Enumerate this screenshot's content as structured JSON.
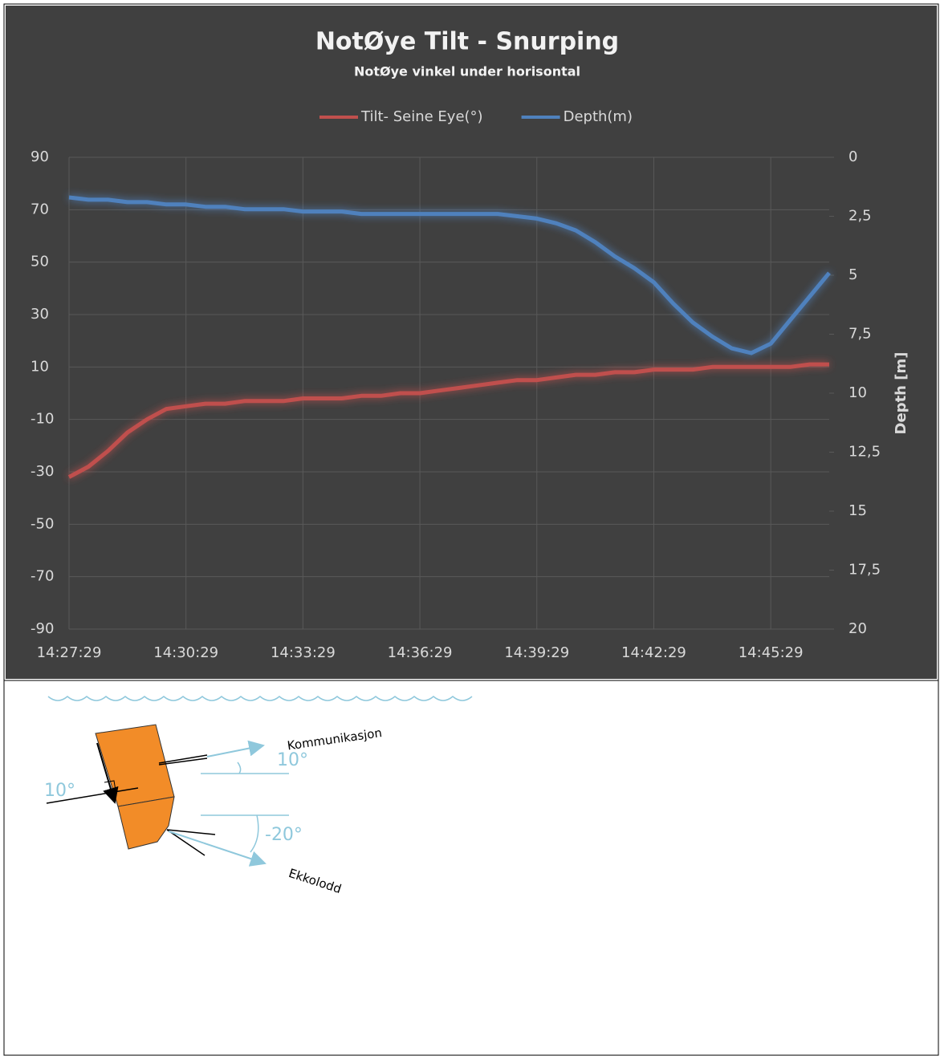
{
  "chart_data": {
    "type": "line",
    "title": "NotØye Tilt - Snurping",
    "subtitle": "NotØye vinkel under horisontal",
    "y2_axis_label": "Depth [m]",
    "x": [
      "14:27:29",
      "14:27:59",
      "14:28:29",
      "14:28:59",
      "14:29:29",
      "14:29:59",
      "14:30:29",
      "14:30:59",
      "14:31:29",
      "14:31:59",
      "14:32:29",
      "14:32:59",
      "14:33:29",
      "14:33:59",
      "14:34:29",
      "14:34:59",
      "14:35:29",
      "14:35:59",
      "14:36:29",
      "14:36:59",
      "14:37:29",
      "14:37:59",
      "14:38:29",
      "14:38:59",
      "14:39:29",
      "14:39:59",
      "14:40:29",
      "14:40:59",
      "14:41:29",
      "14:41:59",
      "14:42:29",
      "14:42:59",
      "14:43:29",
      "14:43:59",
      "14:44:29",
      "14:44:59",
      "14:45:29",
      "14:45:59",
      "14:46:29",
      "14:46:59"
    ],
    "xlim": [
      "14:27:29",
      "14:46:59"
    ],
    "xticks": [
      "14:27:29",
      "14:30:29",
      "14:33:29",
      "14:36:29",
      "14:39:29",
      "14:42:29",
      "14:45:29"
    ],
    "series": [
      {
        "name": "Tilt- Seine Eye(°)",
        "color": "#c0504d",
        "values": [
          -32,
          -28,
          -22,
          -15,
          -10,
          -6,
          -5,
          -4,
          -4,
          -3,
          -3,
          -3,
          -2,
          -2,
          -2,
          -1,
          -1,
          0,
          0,
          1,
          2,
          3,
          4,
          5,
          5,
          6,
          7,
          7,
          8,
          8,
          9,
          9,
          9,
          10,
          10,
          10,
          10,
          10,
          11,
          11
        ]
      },
      {
        "name": "Depth(m)",
        "color": "#4f81bd",
        "axis": "y2",
        "values": [
          1.7,
          1.8,
          1.8,
          1.9,
          1.9,
          2.0,
          2.0,
          2.1,
          2.1,
          2.2,
          2.2,
          2.2,
          2.3,
          2.3,
          2.3,
          2.4,
          2.4,
          2.4,
          2.4,
          2.4,
          2.4,
          2.4,
          2.4,
          2.5,
          2.6,
          2.8,
          3.1,
          3.6,
          4.2,
          4.7,
          5.3,
          6.2,
          7.0,
          7.6,
          8.1,
          8.3,
          7.9,
          6.9,
          5.9,
          4.9
        ]
      }
    ],
    "ylim": [
      -90,
      90
    ],
    "yticks": [
      -90,
      -70,
      -50,
      -30,
      -10,
      10,
      30,
      50,
      70,
      90
    ],
    "y2lim": [
      0,
      20
    ],
    "y2_inverted": true,
    "y2ticks": [
      0,
      {
        "value": 2.5,
        "label": "2,5"
      },
      5,
      {
        "value": 7.5,
        "label": "7,5"
      },
      10,
      {
        "value": 12.5,
        "label": "12,5"
      },
      15,
      {
        "value": 17.5,
        "label": "17,5"
      },
      20
    ],
    "grid": true,
    "legend": "top"
  },
  "diagram": {
    "labels": [
      "Kommunikasjon",
      "10°",
      "10°",
      "-20°",
      "Ekkolodd"
    ]
  }
}
